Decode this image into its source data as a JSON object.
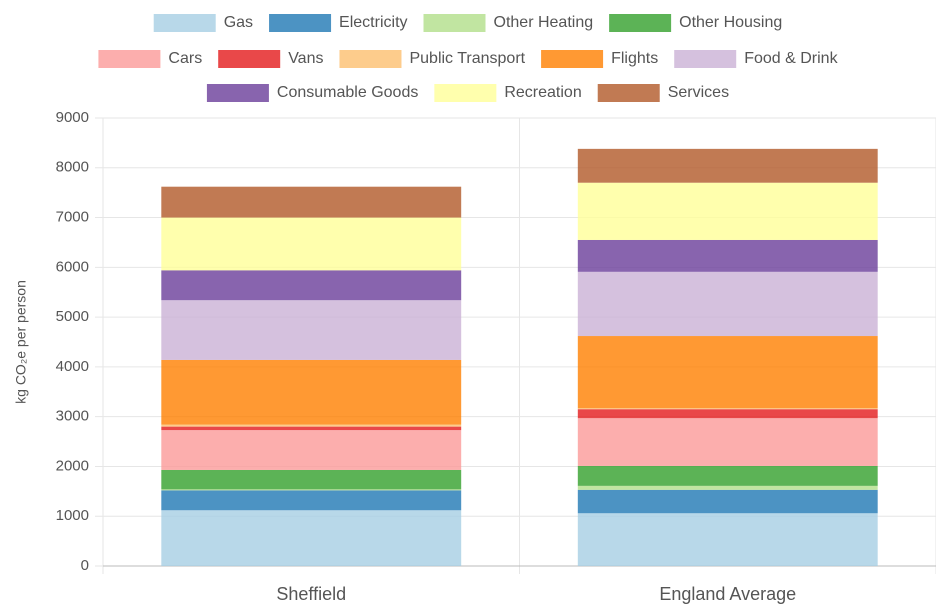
{
  "chart_data": {
    "type": "stacked_bar",
    "y_axis_label": "kg CO₂e per person",
    "categories": [
      "Sheffield",
      "England Average"
    ],
    "ylim": [
      0,
      9000
    ],
    "yticks": [
      0,
      1000,
      2000,
      3000,
      4000,
      5000,
      6000,
      7000,
      8000,
      9000
    ],
    "grid": true,
    "legend": "top",
    "series": [
      {
        "name": "Gas",
        "color": "#a6cee3",
        "values": [
          1120,
          1060
        ]
      },
      {
        "name": "Electricity",
        "color": "#1f78b4",
        "values": [
          400,
          470
        ]
      },
      {
        "name": "Other Heating",
        "color": "#b2df8a",
        "values": [
          20,
          80
        ]
      },
      {
        "name": "Other Housing",
        "color": "#33a02c",
        "values": [
          390,
          400
        ]
      },
      {
        "name": "Cars",
        "color": "#fb9a99",
        "values": [
          800,
          960
        ]
      },
      {
        "name": "Vans",
        "color": "#e31a1c",
        "values": [
          70,
          180
        ]
      },
      {
        "name": "Public Transport",
        "color": "#fdbf6f",
        "values": [
          40,
          20
        ]
      },
      {
        "name": "Flights",
        "color": "#ff7f00",
        "values": [
          1300,
          1450
        ]
      },
      {
        "name": "Food & Drink",
        "color": "#cab2d6",
        "values": [
          1200,
          1290
        ]
      },
      {
        "name": "Consumable Goods",
        "color": "#6a3d9a",
        "values": [
          600,
          640
        ]
      },
      {
        "name": "Recreation",
        "color": "#ffff99",
        "values": [
          1060,
          1150
        ]
      },
      {
        "name": "Services",
        "color": "#b15928",
        "values": [
          620,
          680
        ]
      }
    ]
  }
}
